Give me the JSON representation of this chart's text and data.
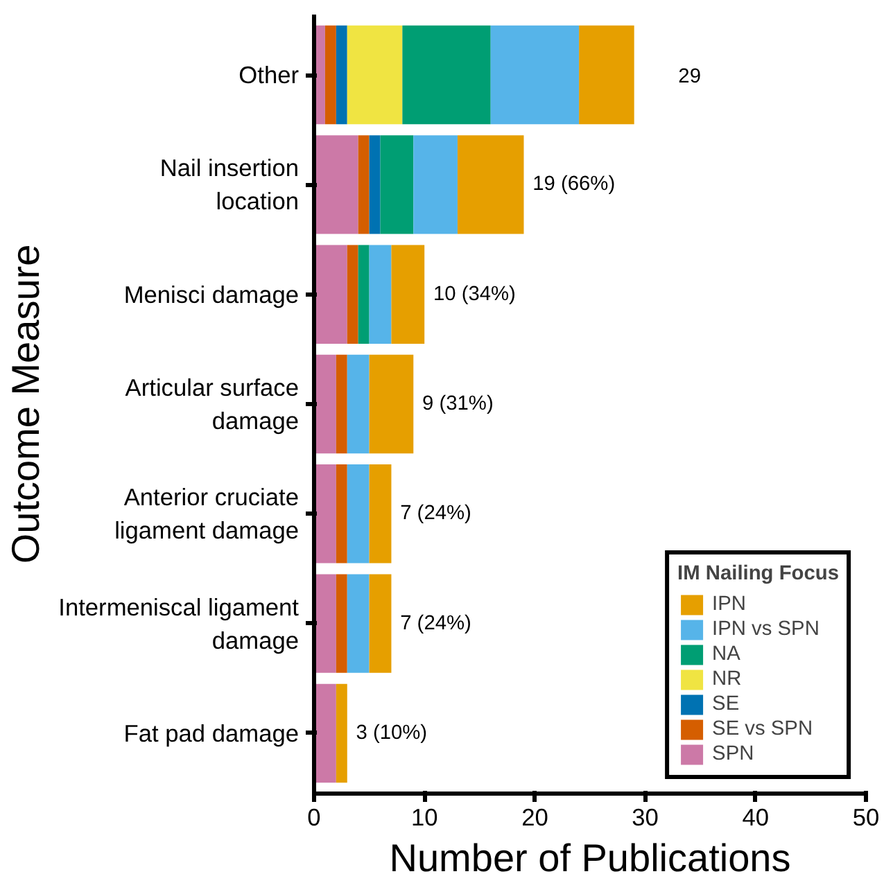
{
  "chart_data": {
    "type": "bar",
    "orientation": "horizontal",
    "stacked": true,
    "xlabel": "Number of Publications",
    "ylabel": "Outcome Measure",
    "legend_title": "IM Nailing Focus",
    "legend": "bottom right",
    "grid": false,
    "categories": [
      "Other",
      "Nail insertion location",
      "Menisci damage",
      "Articular surface damage",
      "Anterior cruciate ligament damage",
      "Intermeniscal ligament damage",
      "Fat pad damage"
    ],
    "series": [
      {
        "name": "SPN",
        "color": "#cc79a7",
        "values": [
          1,
          4,
          3,
          2,
          2,
          2,
          2
        ]
      },
      {
        "name": "SE vs SPN",
        "color": "#d55e00",
        "values": [
          1,
          1,
          1,
          1,
          1,
          1,
          0
        ]
      },
      {
        "name": "SE",
        "color": "#0072b2",
        "values": [
          1,
          1,
          0,
          0,
          0,
          0,
          0
        ]
      },
      {
        "name": "NR",
        "color": "#f0e442",
        "values": [
          5,
          0,
          0,
          0,
          0,
          0,
          0
        ]
      },
      {
        "name": "NA",
        "color": "#009e73",
        "values": [
          8,
          3,
          1,
          0,
          0,
          0,
          0
        ]
      },
      {
        "name": "IPN vs SPN",
        "color": "#56b4e9",
        "values": [
          8,
          4,
          2,
          2,
          2,
          2,
          0
        ]
      },
      {
        "name": "IPN",
        "color": "#e69f00",
        "values": [
          5,
          6,
          3,
          4,
          2,
          2,
          1
        ]
      }
    ],
    "totals": [
      "29",
      "19 (66%)",
      "10 (34%)",
      "9 (31%)",
      "7 (24%)",
      "7 (24%)",
      "3 (10%)"
    ],
    "xlim": [
      0,
      50
    ],
    "xticks": [
      0,
      10,
      20,
      30,
      40,
      50
    ]
  }
}
